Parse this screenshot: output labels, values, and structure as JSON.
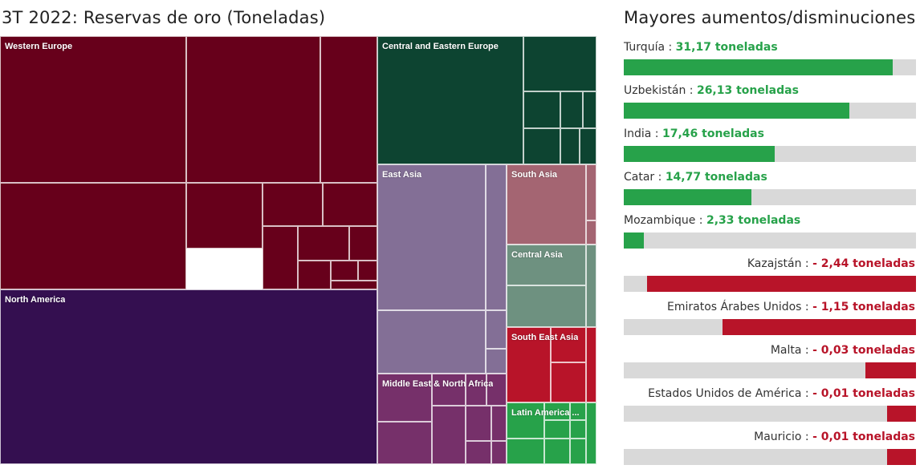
{
  "title": "3T 2022: Reservas de oro (Toneladas)",
  "side_title": "Mayores aumentos/disminuciones",
  "colors": {
    "increase": "#27a24a",
    "decrease": "#b81429",
    "track": "#d9d9d9"
  },
  "chart_data": [
    {
      "type": "treemap",
      "title": "3T 2022: Reservas de oro (Toneladas)",
      "regions": [
        {
          "name": "Western Europe",
          "color": "#67001b"
        },
        {
          "name": "North America",
          "color": "#340f50"
        },
        {
          "name": "Central and Eastern Europe",
          "color": "#0d4431"
        },
        {
          "name": "East Asia",
          "color": "#836f96"
        },
        {
          "name": "South Asia",
          "color": "#a46572"
        },
        {
          "name": "Central Asia",
          "color": "#6e9180"
        },
        {
          "name": "South East Asia",
          "color": "#b81429"
        },
        {
          "name": "Middle East & North Africa",
          "color": "#76306a"
        },
        {
          "name": "Latin America ...",
          "color": "#27a24a"
        }
      ]
    },
    {
      "type": "bar",
      "title": "Mayores aumentos/disminuciones",
      "unit": "toneladas",
      "items": [
        {
          "country": "Turquía",
          "value_label": "31,17 toneladas",
          "value": 31.17,
          "direction": "up"
        },
        {
          "country": "Uzbekistán",
          "value_label": "26,13 toneladas",
          "value": 26.13,
          "direction": "up"
        },
        {
          "country": "India",
          "value_label": "17,46 toneladas",
          "value": 17.46,
          "direction": "up"
        },
        {
          "country": "Catar",
          "value_label": "14,77 toneladas",
          "value": 14.77,
          "direction": "up"
        },
        {
          "country": "Mozambique",
          "value_label": "2,33 toneladas",
          "value": 2.33,
          "direction": "up"
        },
        {
          "country": "Kazajstán",
          "value_label": "- 2,44 toneladas",
          "value": -2.44,
          "direction": "down"
        },
        {
          "country": "Emiratos Árabes Unidos",
          "value_label": "- 1,15 toneladas",
          "value": -1.15,
          "direction": "down"
        },
        {
          "country": "Malta",
          "value_label": "- 0,03 toneladas",
          "value": -0.03,
          "direction": "down"
        },
        {
          "country": "Estados Unidos de América",
          "value_label": "- 0,01 toneladas",
          "value": -0.01,
          "direction": "down"
        },
        {
          "country": "Mauricio",
          "value_label": "- 0,01 toneladas",
          "value": -0.01,
          "direction": "down"
        }
      ]
    }
  ]
}
